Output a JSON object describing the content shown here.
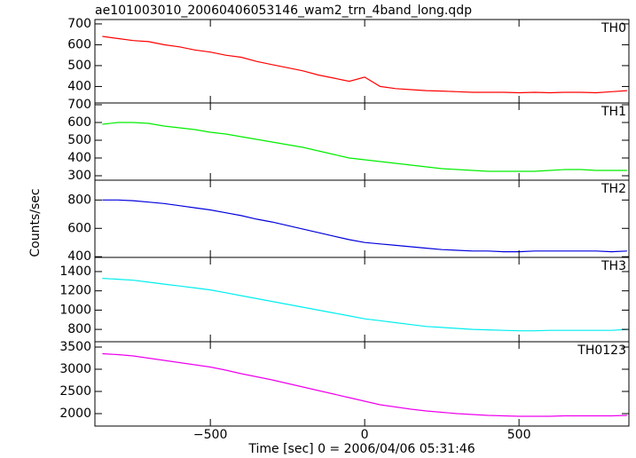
{
  "chart_data": {
    "type": "line",
    "title": "ae101003010_20060406053146_wam2_trn_4band_long.qdp",
    "x_label": "Time [sec] 0 = 2006/04/06 05:31:46",
    "y_label": "Counts/sec",
    "xlim": [
      -874,
      856
    ],
    "xticks": [
      {
        "value": -500,
        "label": "−500"
      },
      0,
      500
    ],
    "x": [
      -850,
      -800,
      -750,
      -700,
      -650,
      -600,
      -550,
      -500,
      -450,
      -400,
      -350,
      -300,
      -250,
      -200,
      -150,
      -100,
      -50,
      0,
      50,
      100,
      150,
      200,
      250,
      300,
      350,
      400,
      450,
      500,
      550,
      600,
      650,
      700,
      750,
      800,
      850
    ],
    "series": [
      {
        "name": "TH0",
        "color": "#ff0000",
        "ylim": [
          321,
          721
        ],
        "yticks": [
          400,
          500,
          600,
          700
        ],
        "values": [
          640,
          630,
          620,
          615,
          600,
          590,
          575,
          565,
          550,
          540,
          520,
          505,
          490,
          475,
          455,
          440,
          425,
          445,
          400,
          390,
          385,
          380,
          378,
          375,
          372,
          372,
          372,
          370,
          372,
          370,
          372,
          372,
          370,
          375,
          380
        ]
      },
      {
        "name": "TH1",
        "color": "#00ee00",
        "ylim": [
          275,
          710
        ],
        "yticks": [
          300,
          400,
          500,
          600,
          700
        ],
        "values": [
          590,
          600,
          600,
          595,
          580,
          570,
          560,
          545,
          535,
          520,
          505,
          490,
          475,
          460,
          440,
          420,
          400,
          390,
          380,
          370,
          360,
          350,
          340,
          335,
          330,
          325,
          325,
          325,
          325,
          330,
          335,
          335,
          330,
          330,
          330
        ]
      },
      {
        "name": "TH2",
        "color": "#0000dd",
        "ylim": [
          395,
          940
        ],
        "yticks": [
          400,
          600,
          800
        ],
        "values": [
          800,
          800,
          795,
          785,
          775,
          760,
          745,
          730,
          710,
          690,
          665,
          645,
          620,
          595,
          570,
          545,
          520,
          500,
          490,
          480,
          470,
          460,
          450,
          445,
          440,
          440,
          435,
          435,
          440,
          440,
          440,
          440,
          440,
          435,
          440
        ]
      },
      {
        "name": "TH3",
        "color": "#00eeee",
        "ylim": [
          672,
          1547
        ],
        "yticks": [
          800,
          1000,
          1200,
          1400
        ],
        "values": [
          1330,
          1320,
          1310,
          1290,
          1270,
          1250,
          1230,
          1210,
          1180,
          1150,
          1120,
          1090,
          1060,
          1030,
          1000,
          970,
          940,
          910,
          890,
          870,
          850,
          830,
          820,
          810,
          800,
          795,
          790,
          785,
          785,
          790,
          790,
          790,
          790,
          790,
          800
        ]
      },
      {
        "name": "TH0123",
        "color": "#ee00ee",
        "ylim": [
          1720,
          3620
        ],
        "yticks": [
          2000,
          2500,
          3000,
          3500
        ],
        "values": [
          3350,
          3330,
          3300,
          3250,
          3200,
          3150,
          3100,
          3050,
          2980,
          2900,
          2830,
          2760,
          2680,
          2600,
          2520,
          2440,
          2360,
          2280,
          2200,
          2150,
          2100,
          2060,
          2030,
          2000,
          1980,
          1960,
          1950,
          1940,
          1940,
          1940,
          1950,
          1950,
          1950,
          1950,
          1960
        ]
      }
    ]
  }
}
